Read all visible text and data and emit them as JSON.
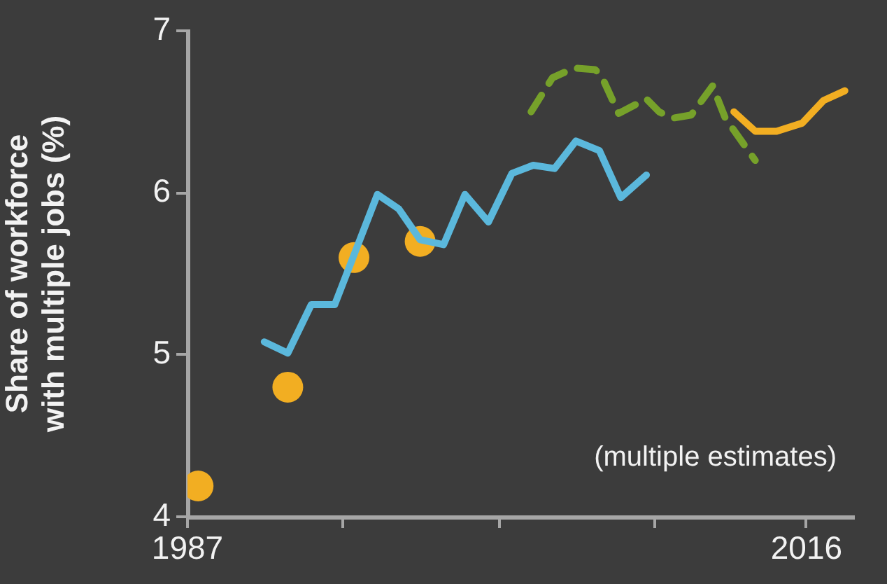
{
  "chart_data": {
    "type": "line",
    "ylabel": "Share of workforce\nwith multiple jobs (%)",
    "annotations": [
      "(multiple estimates)"
    ],
    "xlim": [
      1987,
      2018.2
    ],
    "xticks": [
      1987,
      {
        "value": 1994.3,
        "label": null
      },
      {
        "value": 2001.6,
        "label": null
      },
      {
        "value": 2008.9,
        "label": null
      },
      2016
    ],
    "ylim": [
      4,
      7
    ],
    "yticks": [
      4,
      5,
      6,
      7
    ],
    "grid": false,
    "legend": false,
    "series": [
      {
        "color": "#5bb8dc",
        "marker": "none",
        "line_style": "solid",
        "x": [
          1990.6,
          1991.7,
          1992.8,
          1993.9,
          1995.9,
          1996.9,
          1997.9,
          1999.0,
          2000.0,
          2001.1,
          2002.2,
          2003.2,
          2004.2,
          2005.2,
          2006.3,
          2007.3,
          2008.5
        ],
        "values": [
          5.08,
          5.01,
          5.31,
          5.31,
          5.99,
          5.9,
          5.71,
          5.68,
          5.99,
          5.82,
          6.12,
          6.17,
          6.15,
          6.32,
          6.26,
          5.97,
          6.11
        ]
      },
      {
        "color": "#76a12a",
        "marker": "none",
        "line_style": "dashed",
        "x": [
          2003.1,
          2004.1,
          2005.1,
          2006.1,
          2006.4,
          2007.2,
          2008.5,
          2009.1,
          2009.7,
          2010.6,
          2011.6,
          2012.2,
          2013.6
        ],
        "values": [
          6.5,
          6.71,
          6.77,
          6.76,
          6.72,
          6.49,
          6.58,
          6.5,
          6.46,
          6.48,
          6.66,
          6.46,
          6.2
        ]
      },
      {
        "color": "#f2ae22",
        "marker": "none",
        "line_style": "solid",
        "x": [
          2012.6,
          2013.6,
          2014.6,
          2015.8,
          2016.8,
          2017.8
        ],
        "values": [
          6.5,
          6.38,
          6.38,
          6.43,
          6.57,
          6.63
        ]
      },
      {
        "type": "scatter",
        "color": "#f2ae22",
        "marker": "circle",
        "x": [
          1987.5,
          1991.7,
          1994.8,
          1997.9
        ],
        "values": [
          4.19,
          4.8,
          5.6,
          5.7
        ]
      }
    ]
  }
}
